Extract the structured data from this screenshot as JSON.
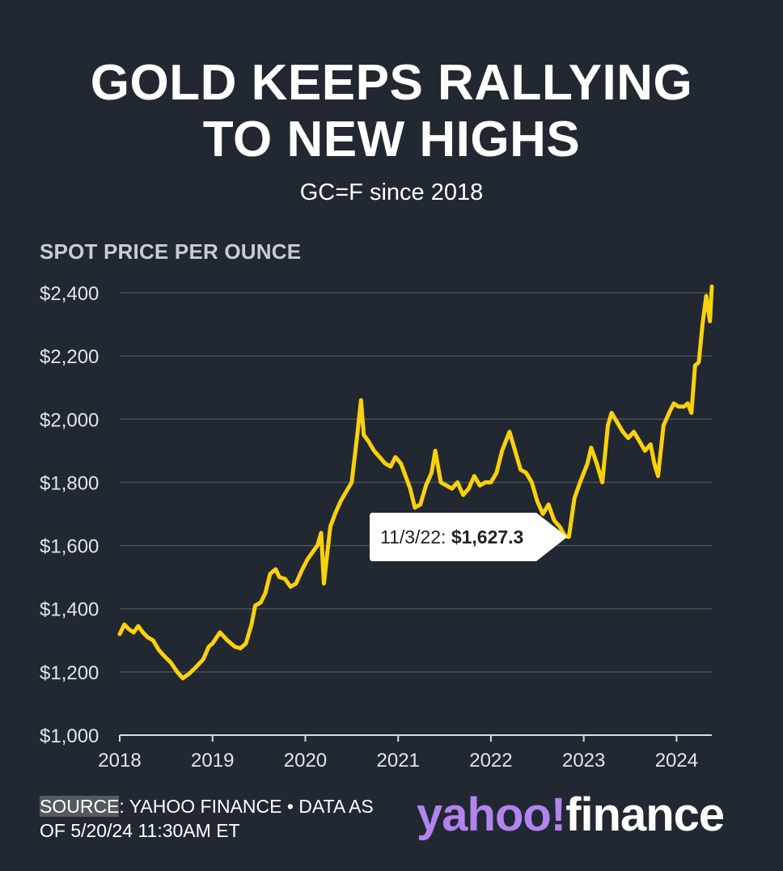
{
  "title_line1": "GOLD KEEPS RALLYING",
  "title_line2": "TO NEW HIGHS",
  "subtitle": "GC=F since 2018",
  "source": {
    "label": "SOURCE",
    "text": ": YAHOO FINANCE • DATA AS OF 5/20/24 11:30AM ET"
  },
  "logo": {
    "yahoo": "yahoo!",
    "finance": "finance"
  },
  "colors": {
    "background": "#222831",
    "line": "#f9d10c",
    "gridline": "#4a4f57",
    "logo_purple": "#b184ee"
  },
  "chart_data": {
    "type": "line",
    "ylabel": "SPOT PRICE PER OUNCE",
    "ylim": [
      1000,
      2400
    ],
    "xlim": [
      2018.0,
      2024.38
    ],
    "yticks": [
      1000,
      1200,
      1400,
      1600,
      1800,
      2000,
      2200,
      2400
    ],
    "ytick_labels": [
      "$1,000",
      "$1,200",
      "$1,400",
      "$1,600",
      "$1,800",
      "$2,000",
      "$2,200",
      "$2,400"
    ],
    "xticks": [
      2018,
      2019,
      2020,
      2021,
      2022,
      2023,
      2024
    ],
    "xtick_labels": [
      "2018",
      "2019",
      "2020",
      "2021",
      "2022",
      "2023",
      "2024"
    ],
    "grid": true,
    "series": [
      {
        "x": [
          2018.0,
          2018.05,
          2018.1,
          2018.15,
          2018.2,
          2018.25,
          2018.3,
          2018.36,
          2018.42,
          2018.48,
          2018.55,
          2018.62,
          2018.68,
          2018.75,
          2018.82,
          2018.9,
          2018.96,
          2019.0,
          2019.08,
          2019.16,
          2019.24,
          2019.3,
          2019.36,
          2019.42,
          2019.46,
          2019.52,
          2019.57,
          2019.62,
          2019.68,
          2019.72,
          2019.78,
          2019.84,
          2019.9,
          2019.96,
          2020.02,
          2020.08,
          2020.13,
          2020.17,
          2020.2,
          2020.23,
          2020.27,
          2020.32,
          2020.38,
          2020.44,
          2020.5,
          2020.56,
          2020.6,
          2020.63,
          2020.68,
          2020.74,
          2020.8,
          2020.86,
          2020.92,
          2020.97,
          2021.03,
          2021.08,
          2021.13,
          2021.18,
          2021.24,
          2021.3,
          2021.36,
          2021.4,
          2021.46,
          2021.52,
          2021.58,
          2021.64,
          2021.7,
          2021.76,
          2021.82,
          2021.88,
          2021.94,
          2022.0,
          2022.06,
          2022.12,
          2022.16,
          2022.2,
          2022.26,
          2022.32,
          2022.38,
          2022.44,
          2022.5,
          2022.56,
          2022.62,
          2022.68,
          2022.74,
          2022.8,
          2022.84,
          2022.9,
          2022.96,
          2023.04,
          2023.08,
          2023.14,
          2023.2,
          2023.26,
          2023.3,
          2023.36,
          2023.42,
          2023.48,
          2023.54,
          2023.6,
          2023.66,
          2023.72,
          2023.76,
          2023.8,
          2023.86,
          2023.92,
          2023.97,
          2024.02,
          2024.08,
          2024.12,
          2024.16,
          2024.2,
          2024.24,
          2024.28,
          2024.32,
          2024.36,
          2024.38
        ],
        "values": [
          1320,
          1350,
          1335,
          1325,
          1345,
          1325,
          1310,
          1300,
          1270,
          1250,
          1230,
          1200,
          1180,
          1195,
          1215,
          1240,
          1280,
          1290,
          1325,
          1300,
          1280,
          1275,
          1290,
          1350,
          1410,
          1420,
          1450,
          1510,
          1525,
          1500,
          1495,
          1470,
          1480,
          1520,
          1555,
          1580,
          1600,
          1640,
          1480,
          1560,
          1660,
          1700,
          1740,
          1770,
          1800,
          1950,
          2060,
          1950,
          1930,
          1900,
          1880,
          1860,
          1850,
          1880,
          1860,
          1820,
          1780,
          1720,
          1730,
          1790,
          1830,
          1900,
          1800,
          1790,
          1780,
          1800,
          1760,
          1780,
          1820,
          1790,
          1800,
          1800,
          1830,
          1900,
          1930,
          1960,
          1900,
          1840,
          1830,
          1800,
          1740,
          1700,
          1730,
          1680,
          1660,
          1630,
          1627.3,
          1750,
          1800,
          1860,
          1910,
          1860,
          1800,
          1980,
          2020,
          1990,
          1960,
          1940,
          1960,
          1930,
          1900,
          1920,
          1860,
          1820,
          1980,
          2020,
          2050,
          2040,
          2040,
          2050,
          2020,
          2170,
          2180,
          2300,
          2390,
          2310,
          2420
        ]
      }
    ],
    "annotation": {
      "label": "11/3/22: ",
      "value": "$1,627.3",
      "x": 2022.84,
      "y": 1627.3
    }
  }
}
